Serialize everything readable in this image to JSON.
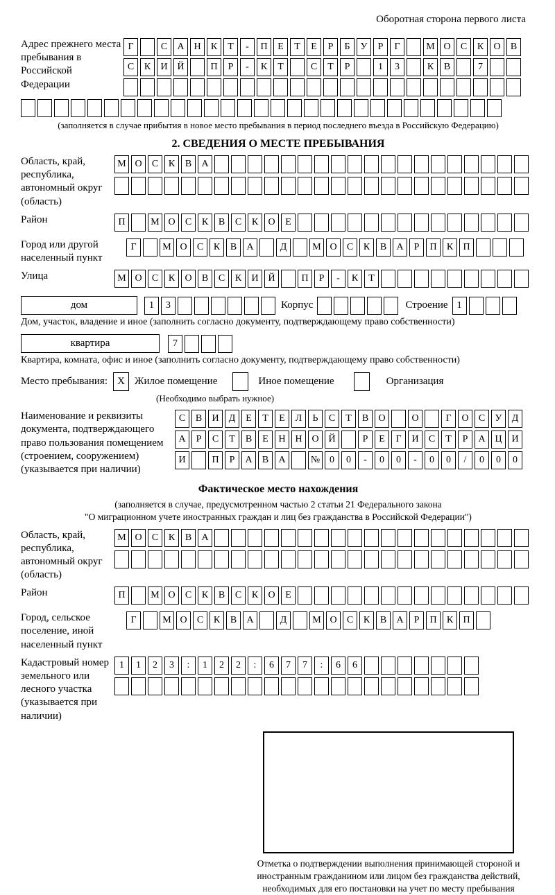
{
  "palette": {
    "ink": "#000000",
    "paper": "#ffffff"
  },
  "page": {
    "header_note": "Оборотная сторона первого листа"
  },
  "prev_address": {
    "label": "Адрес прежнего места пребывания в Российской Федерации",
    "row1": "Г САНКТ-ПЕТЕРБУРГ МОСКОВ",
    "row2": "СКИЙ ПР-КТ СТР 13 КВ 7",
    "row3": "",
    "row4": "",
    "caption": "(заполняется в случае прибытия в новое место пребывания в период последнего въезда в Российскую Федерацию)"
  },
  "section2": {
    "title": "2. СВЕДЕНИЯ О МЕСТЕ ПРЕБЫВАНИЯ",
    "region": {
      "label": "Область, край, республика, автономный округ (область)",
      "row1": "МОСКВА",
      "row2": ""
    },
    "district": {
      "label": "Район",
      "row": "П МОСКВСКОЕ"
    },
    "city": {
      "label": "Город или другой населенный пункт",
      "row": "Г МОСКВА Д МОСКВАРПКП"
    },
    "street": {
      "label": "Улица",
      "row": "МОСКОВСКИЙ ПР-КТ"
    },
    "house": {
      "type_value": "дом",
      "number": "13",
      "korpus_label": "Корпус",
      "korpus": "",
      "stroenie_label": "Строение",
      "stroenie": "1",
      "caption": "Дом, участок, владение и иное (заполнить согласно документу, подтверждающему право собственности)"
    },
    "apartment": {
      "type_value": "квартира",
      "number": "7",
      "caption": "Квартира, комната, офис и иное (заполнить согласно документу, подтверждающему право собственности)"
    },
    "stay_type": {
      "label": "Место пребывания:",
      "options": [
        {
          "label": "Жилое помещение",
          "checked": "X"
        },
        {
          "label": "Иное помещение",
          "checked": ""
        },
        {
          "label": "Организация",
          "checked": ""
        }
      ],
      "hint": "(Необходимо выбрать нужное)"
    },
    "document": {
      "label": "Наименование и реквизиты документа, подтверждающего право пользования помещением (строением, сооружением) (указывается при наличии)",
      "row1": "СВИДЕТЕЛЬСТВО О ГОСУД",
      "row2": "АРСТВЕННОЙ РЕГИСТРАЦИ",
      "row3": "И ПРАВА №00-00-00/000"
    }
  },
  "actual_location": {
    "title": "Фактическое место нахождения",
    "caption_line1": "(заполняется в случае, предусмотренном частью 2 статьи 21 Федерального закона",
    "caption_line2": "\"О миграционном учете иностранных граждан и лиц без гражданства в Российской Федерации\")",
    "region": {
      "label": "Область, край, республика, автономный округ (область)",
      "row1": "МОСКВА",
      "row2": ""
    },
    "district": {
      "label": "Район",
      "row": "П МОСКВСКОЕ"
    },
    "city": {
      "label": "Город, сельское поселение, иной населенный пункт",
      "row": "Г МОСКВА Д МОСКВАРПКП"
    },
    "cadastral": {
      "label": "Кадастровый номер земельного или лесного участка (указывается при наличии)",
      "row1": "1123:122:677:66",
      "row2": ""
    }
  },
  "confirmation": {
    "caption": "Отметка о подтверждении выполнения принимающей стороной и иностранным гражданином или лицом без гражданства действий, необходимых для его постановки на учет по месту пребывания"
  }
}
